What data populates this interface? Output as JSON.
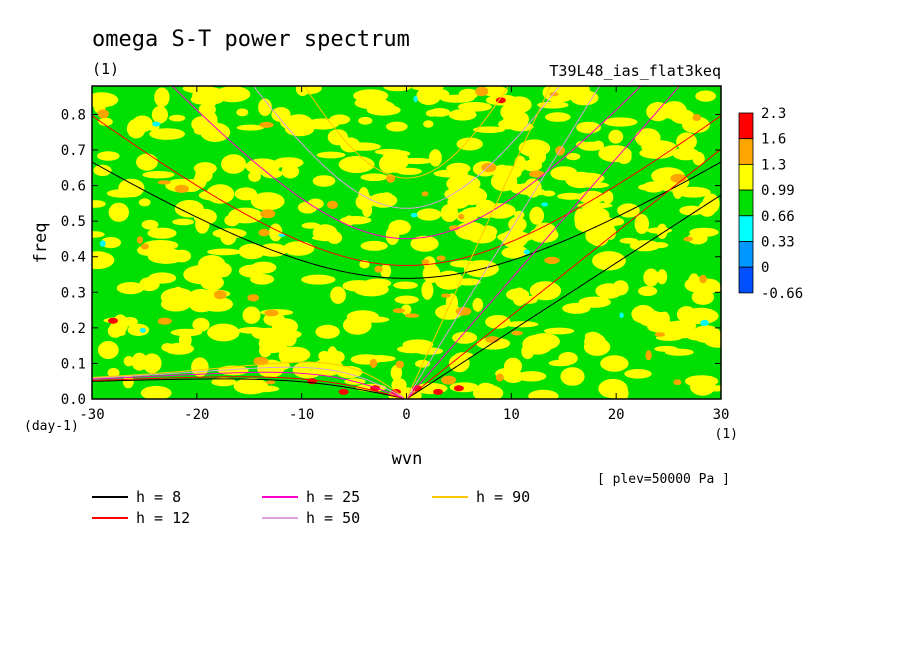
{
  "chart_data": {
    "type": "heatmap",
    "title": "omega S-T power spectrum",
    "subtitle_left": "(1)",
    "subtitle_right": "T39L48_ias_flat3keq",
    "xlabel": "wvn",
    "ylabel": "freq",
    "x_units": "(1)",
    "y_units": "(day-1)",
    "xlim": [
      -30,
      30
    ],
    "ylim": [
      0,
      0.88
    ],
    "x_ticks": [
      -30,
      -20,
      -10,
      0,
      10,
      20,
      30
    ],
    "x_tick_labels": [
      "-30",
      "-20",
      "-10",
      "0",
      "10",
      "20",
      "30"
    ],
    "y_ticks": [
      0.0,
      0.1,
      0.2,
      0.3,
      0.4,
      0.5,
      0.6,
      0.7,
      0.8
    ],
    "y_tick_labels": [
      "0.0",
      "0.1",
      "0.2",
      "0.3",
      "0.4",
      "0.5",
      "0.6",
      "0.7",
      "0.8"
    ],
    "annotation": "[ plev=50000 Pa ]",
    "colorbar": {
      "levels": [
        "2.3",
        "1.6",
        "1.3",
        "0.99",
        "0.66",
        "0.33",
        "0",
        "-0.66"
      ],
      "colors": [
        "#ff0000",
        "#ffa500",
        "#ffff00",
        "#00e000",
        "#00ffff",
        "#0096ff",
        "#0050ff"
      ]
    },
    "field_colors": {
      "background": "#00e000",
      "level_099": "#ffff00",
      "level_13": "#ffa500",
      "level_16": "#ff0000",
      "level_066": "#00ffff"
    },
    "dispersion_curves": [
      {
        "name": "h =  8",
        "h": 8,
        "color": "#000000"
      },
      {
        "name": "h = 12",
        "h": 12,
        "color": "#ff0000"
      },
      {
        "name": "h = 25",
        "h": 25,
        "color": "#ff00c8"
      },
      {
        "name": "h = 50",
        "h": 50,
        "color": "#dca0dc"
      },
      {
        "name": "h = 90",
        "h": 90,
        "color": "#ffc800"
      }
    ]
  }
}
